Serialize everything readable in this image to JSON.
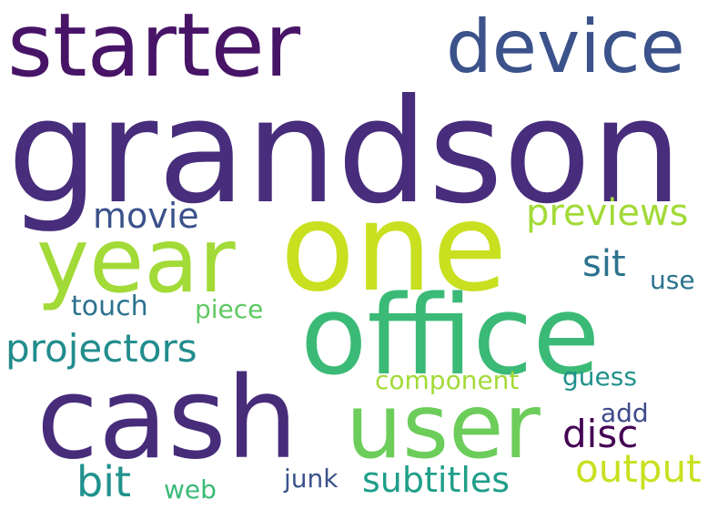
{
  "words": [
    {
      "text": "grandson",
      "color": "#472d7b"
    },
    {
      "text": "starter",
      "color": "#481467"
    },
    {
      "text": "device",
      "color": "#3b528b"
    },
    {
      "text": "one",
      "color": "#c8e020"
    },
    {
      "text": "year",
      "color": "#a2da37"
    },
    {
      "text": "office",
      "color": "#3aba76"
    },
    {
      "text": "cash",
      "color": "#472c7a"
    },
    {
      "text": "user",
      "color": "#6ccd5a"
    },
    {
      "text": "projectors",
      "color": "#228c8d"
    },
    {
      "text": "previews",
      "color": "#a2da37"
    },
    {
      "text": "movie",
      "color": "#3b528b"
    },
    {
      "text": "sit",
      "color": "#2c728e"
    },
    {
      "text": "use",
      "color": "#2c728e"
    },
    {
      "text": "touch",
      "color": "#2c728e"
    },
    {
      "text": "piece",
      "color": "#5ec962"
    },
    {
      "text": "component",
      "color": "#a2da37"
    },
    {
      "text": "guess",
      "color": "#21918c"
    },
    {
      "text": "add",
      "color": "#3e4989"
    },
    {
      "text": "disc",
      "color": "#440154"
    },
    {
      "text": "output",
      "color": "#c8e020"
    },
    {
      "text": "bit",
      "color": "#21918c"
    },
    {
      "text": "web",
      "color": "#3aba76"
    },
    {
      "text": "junk",
      "color": "#3b528b"
    },
    {
      "text": "subtitles",
      "color": "#1f9e89"
    }
  ]
}
